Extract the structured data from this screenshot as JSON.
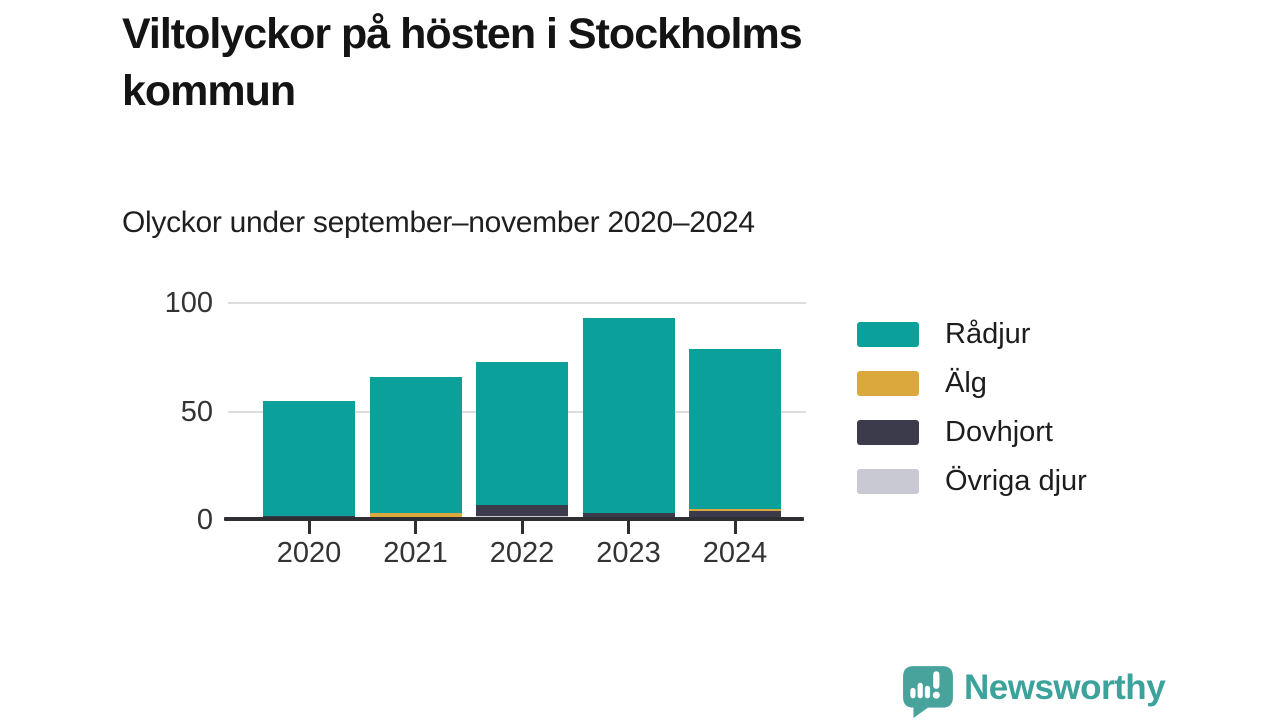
{
  "header": {
    "title": "Viltolyckor på hösten i Stockholms kommun",
    "subtitle": "Olyckor under september–november 2020–2024"
  },
  "chart_data": {
    "type": "bar",
    "stacked": true,
    "title": "Viltolyckor på hösten i Stockholms kommun",
    "subtitle": "Olyckor under september–november 2020–2024",
    "categories": [
      "2020",
      "2021",
      "2022",
      "2023",
      "2024"
    ],
    "series": [
      {
        "name": "Rådjur",
        "color": "#0ba099",
        "values": [
          53,
          63,
          66,
          90,
          74
        ]
      },
      {
        "name": "Älg",
        "color": "#dba83e",
        "values": [
          0,
          3,
          0,
          0,
          1
        ]
      },
      {
        "name": "Dovhjort",
        "color": "#3c3b4c",
        "values": [
          1,
          0,
          5,
          2,
          4
        ]
      },
      {
        "name": "Övriga djur",
        "color": "#c9c9d4",
        "values": [
          1,
          0,
          2,
          1,
          0
        ]
      }
    ],
    "totals": [
      55,
      66,
      73,
      93,
      79
    ],
    "stack_order_bottom_to_top": [
      "Övriga djur",
      "Dovhjort",
      "Älg",
      "Rådjur"
    ],
    "xlabel": "",
    "ylabel": "",
    "ylim": [
      0,
      100
    ],
    "yticks": [
      0,
      50,
      100
    ],
    "grid": true,
    "legend_position": "right"
  },
  "legend": {
    "items": [
      {
        "label": "Rådjur",
        "color": "#0ba099"
      },
      {
        "label": "Älg",
        "color": "#dba83e"
      },
      {
        "label": "Dovhjort",
        "color": "#3c3b4c"
      },
      {
        "label": "Övriga djur",
        "color": "#c9c9d4"
      }
    ]
  },
  "footer": {
    "brand": "Newsworthy",
    "brand_color": "#3ba39b",
    "logo_color": "#47a39c"
  },
  "colors": {
    "axis": "#2e2f33",
    "gridline": "#dddddd",
    "tick_text": "#333333"
  }
}
